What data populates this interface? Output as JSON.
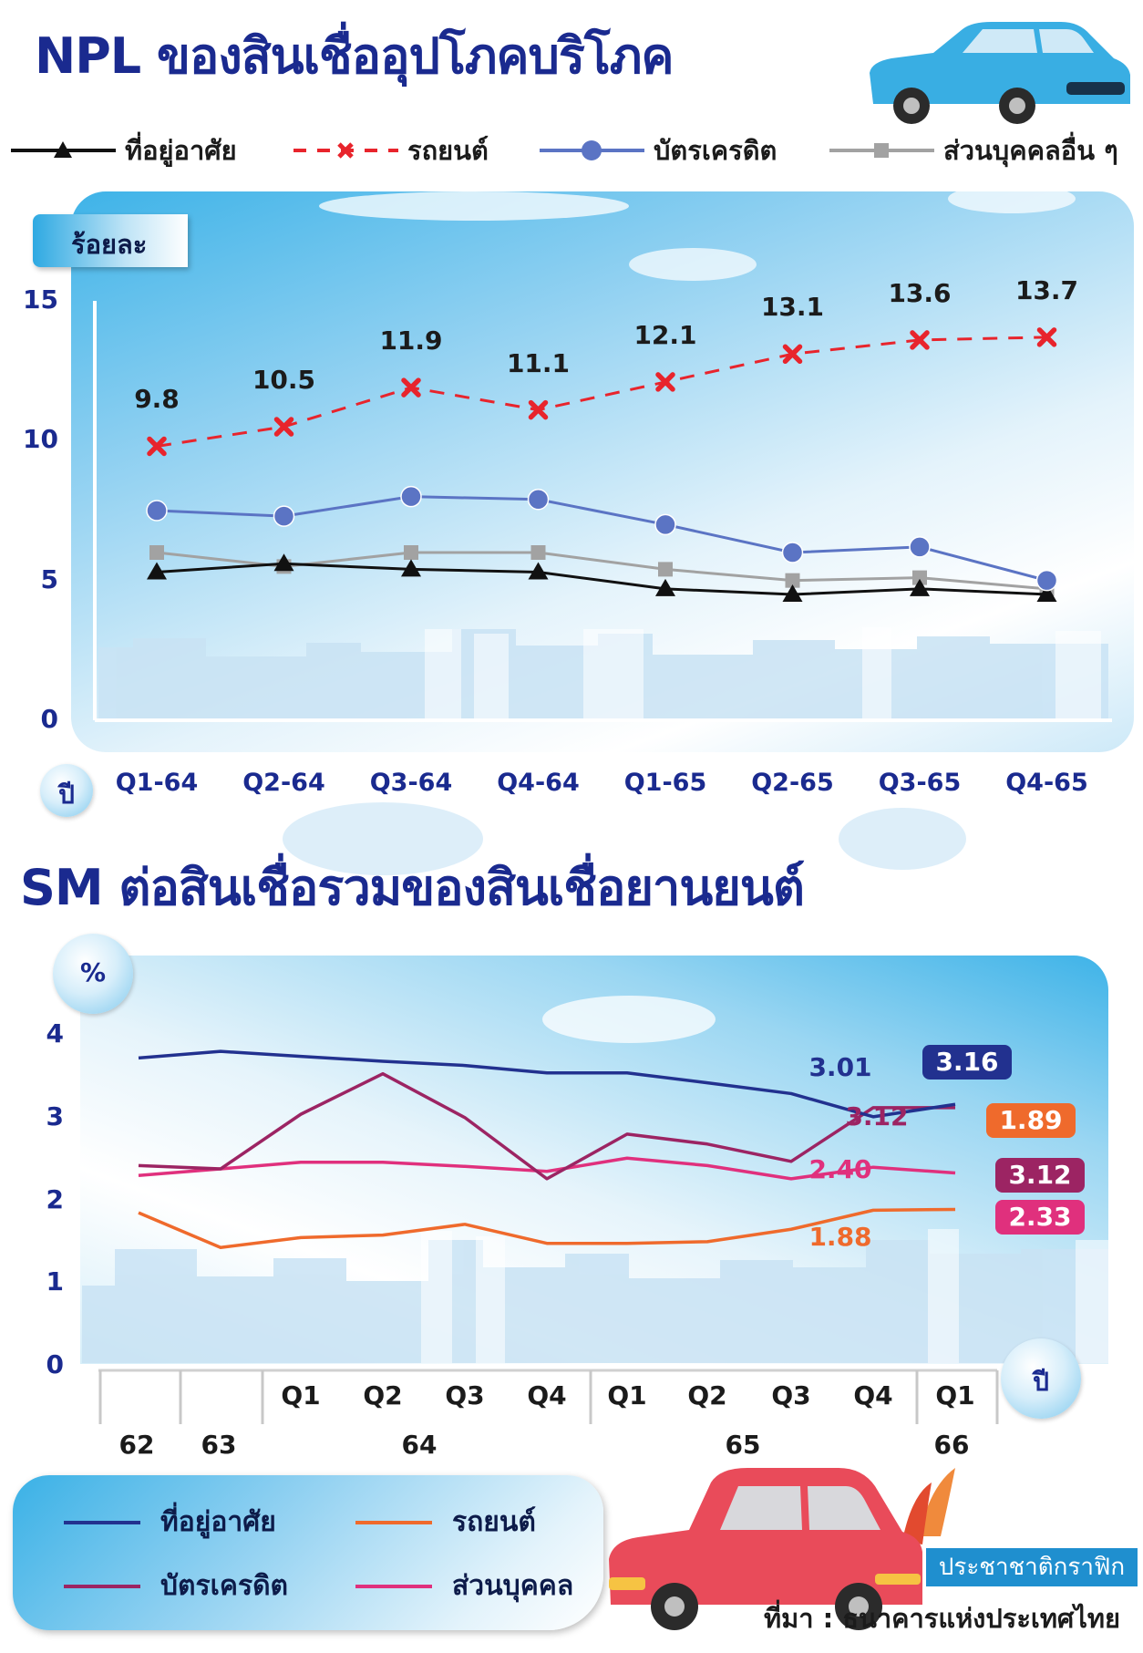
{
  "header": {
    "title1": "NPL ของสินเชื่ออุปโภคบริโภค",
    "title2": "SM ต่อสินเชื่อรวมของสินเชื่อยานยนต์"
  },
  "chart_data": [
    {
      "type": "line",
      "ylabel": "ร้อยละ",
      "xlabel": "ปี",
      "ylim": [
        0,
        15
      ],
      "yticks": [
        "0",
        "5",
        "10",
        "15"
      ],
      "categories": [
        "Q1-64",
        "Q2-64",
        "Q3-64",
        "Q4-64",
        "Q1-65",
        "Q2-65",
        "Q3-65",
        "Q4-65"
      ],
      "legend_position": "top",
      "series": [
        {
          "name": "ที่อยู่อาศัย",
          "color": "#111111",
          "marker": "triangle",
          "style": "solid",
          "values": [
            5.3,
            5.6,
            5.4,
            5.3,
            4.7,
            4.5,
            4.7,
            4.5
          ]
        },
        {
          "name": "รถยนต์",
          "color": "#e8242c",
          "marker": "x",
          "style": "dashed",
          "values": [
            9.8,
            10.5,
            11.9,
            11.1,
            12.1,
            13.1,
            13.6,
            13.7
          ],
          "labels": [
            "9.8",
            "10.5",
            "11.9",
            "11.1",
            "12.1",
            "13.1",
            "13.6",
            "13.7"
          ]
        },
        {
          "name": "บัตรเครดิต",
          "color": "#5b74c4",
          "marker": "circle",
          "style": "solid",
          "values": [
            7.5,
            7.3,
            8.0,
            7.9,
            7.0,
            6.0,
            6.2,
            5.0
          ]
        },
        {
          "name": "ส่วนบุคคลอื่น ๆ",
          "color": "#a2a2a2",
          "marker": "square",
          "style": "solid",
          "values": [
            6.0,
            5.5,
            6.0,
            6.0,
            5.4,
            5.0,
            5.1,
            4.7
          ]
        }
      ]
    },
    {
      "type": "line",
      "ylabel": "%",
      "xlabel": "ปี",
      "ylim": [
        0,
        4
      ],
      "yticks": [
        "0",
        "1",
        "2",
        "3",
        "4"
      ],
      "categories": [
        "62",
        "63",
        "Q1-64",
        "Q2-64",
        "Q3-64",
        "Q4-64",
        "Q1-65",
        "Q2-65",
        "Q3-65",
        "Q4-65",
        "Q1-66"
      ],
      "quarter_labels": [
        "Q1",
        "Q2",
        "Q3",
        "Q4",
        "Q1",
        "Q2",
        "Q3",
        "Q4",
        "Q1"
      ],
      "year_labels": [
        "62",
        "63",
        "64",
        "65",
        "66"
      ],
      "legend_position": "bottom-left",
      "series": [
        {
          "name": "ที่อยู่อาศัย",
          "color": "#22318f",
          "values": [
            3.72,
            3.8,
            3.74,
            3.68,
            3.63,
            3.54,
            3.54,
            3.42,
            3.29,
            3.01,
            3.16
          ],
          "prev_label": "3.01",
          "end_label": "3.16"
        },
        {
          "name": "รถยนต์",
          "color": "#ef6a2c",
          "values": [
            1.85,
            1.43,
            1.55,
            1.58,
            1.71,
            1.48,
            1.48,
            1.5,
            1.65,
            1.88,
            1.89
          ],
          "prev_label": "1.88",
          "end_label": "1.89"
        },
        {
          "name": "บัตรเครดิต",
          "color": "#9c2463",
          "values": [
            2.42,
            2.38,
            3.04,
            3.53,
            3.0,
            2.26,
            2.8,
            2.68,
            2.47,
            3.12,
            3.12
          ],
          "prev_label": "3.12",
          "end_label": "3.12"
        },
        {
          "name": "ส่วนบุคคล",
          "color": "#e0307d",
          "values": [
            2.3,
            2.38,
            2.46,
            2.46,
            2.41,
            2.35,
            2.51,
            2.42,
            2.26,
            2.4,
            2.33
          ],
          "prev_label": "2.40",
          "end_label": "2.33"
        }
      ]
    }
  ],
  "footer": {
    "brand": "ประชาชาติกราฟิก",
    "source": "ที่มา : ธนาคารแห่งประเทศไทย"
  }
}
